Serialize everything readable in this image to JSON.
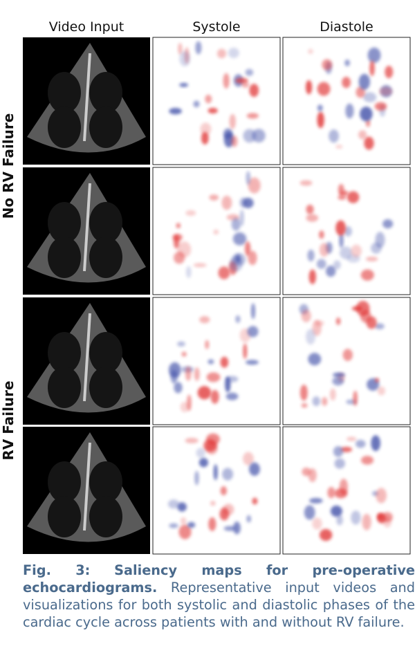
{
  "figure": {
    "columns": [
      "Video Input",
      "Systole",
      "Diastole"
    ],
    "row_groups": [
      "No RV Failure",
      "RV Failure"
    ],
    "caption": {
      "label": "Fig. 3:",
      "title": "Saliency maps for pre-operative echocardiograms.",
      "text": "Representative input videos and visualizations for both systolic and diastolic phases of the cardiac cycle across patients with and without RV failure."
    }
  }
}
